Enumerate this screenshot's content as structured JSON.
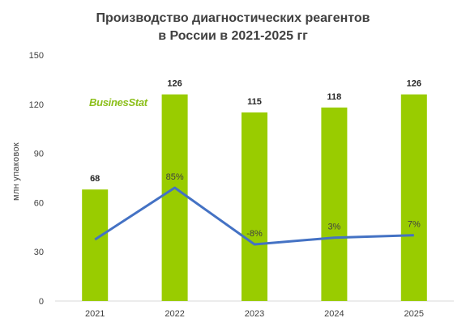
{
  "title_line1": "Производство диагностических реагентов",
  "title_line2": "в России в 2021-2025 гг",
  "logo": "BusinesStat",
  "chart_data": {
    "type": "bar",
    "title": "Производство диагностических реагентов в России в 2021-2025 гг",
    "ylabel": "млн упаковок",
    "categories": [
      "2021",
      "2022",
      "2023",
      "2024",
      "2025"
    ],
    "values": [
      68,
      126,
      115,
      118,
      126
    ],
    "ylim": [
      0,
      150
    ],
    "yticks": [
      0,
      30,
      60,
      90,
      120,
      150
    ],
    "bar_color": "#99cc00",
    "growth_line": {
      "type": "line",
      "color": "#4472c4",
      "labels": [
        "",
        "85%",
        "-8%",
        "3%",
        "7%"
      ],
      "values": [
        null,
        85,
        -8,
        3,
        7
      ]
    },
    "grid": false,
    "legend": "none"
  }
}
